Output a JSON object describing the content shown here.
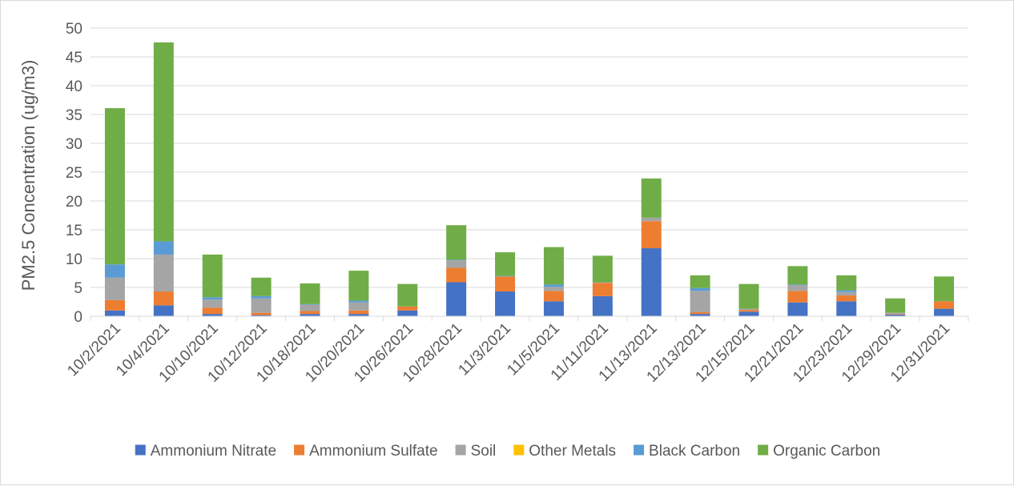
{
  "chart_data": {
    "type": "bar",
    "stacked": true,
    "title": "",
    "xlabel": "",
    "ylabel": "PM2.5 Concentration (ug/m3)",
    "ylim": [
      0,
      50
    ],
    "yticks": [
      "0",
      "5",
      "10",
      "15",
      "20",
      "25",
      "30",
      "35",
      "40",
      "45",
      "50"
    ],
    "grid": true,
    "legend_position": "bottom",
    "categories": [
      "10/2/2021",
      "10/4/2021",
      "10/10/2021",
      "10/12/2021",
      "10/18/2021",
      "10/20/2021",
      "10/26/2021",
      "10/28/2021",
      "11/3/2021",
      "11/5/2021",
      "11/11/2021",
      "11/13/2021",
      "12/13/2021",
      "12/15/2021",
      "12/21/2021",
      "12/23/2021",
      "12/29/2021",
      "12/31/2021"
    ],
    "series": [
      {
        "name": "Ammonium Nitrate",
        "color": "#4472C4",
        "values": [
          1.0,
          1.9,
          0.4,
          0.2,
          0.4,
          0.4,
          1.0,
          5.9,
          4.3,
          2.6,
          3.5,
          11.8,
          0.4,
          0.8,
          2.4,
          2.6,
          0.3,
          1.3
        ]
      },
      {
        "name": "Ammonium Sulfate",
        "color": "#ED7D31",
        "values": [
          1.8,
          2.4,
          1.1,
          0.4,
          0.5,
          0.6,
          0.7,
          2.5,
          2.6,
          1.8,
          2.3,
          4.7,
          0.3,
          0.3,
          2.0,
          1.0,
          0.1,
          1.3
        ]
      },
      {
        "name": "Soil",
        "color": "#A5A5A5",
        "values": [
          3.9,
          6.4,
          1.4,
          2.5,
          1.1,
          1.4,
          0.0,
          1.3,
          0.0,
          0.7,
          0.1,
          0.6,
          3.7,
          0.2,
          1.0,
          0.6,
          0.2,
          0.0
        ]
      },
      {
        "name": "Other Metals",
        "color": "#FFC000",
        "values": [
          0.0,
          0.0,
          0.0,
          0.0,
          0.0,
          0.0,
          0.0,
          0.0,
          0.0,
          0.0,
          0.0,
          0.0,
          0.0,
          0.0,
          0.0,
          0.0,
          0.0,
          0.0
        ]
      },
      {
        "name": "Black Carbon",
        "color": "#5B9BD5",
        "values": [
          2.3,
          2.3,
          0.4,
          0.4,
          0.1,
          0.3,
          0.0,
          0.1,
          0.1,
          0.4,
          0.0,
          0.0,
          0.5,
          0.0,
          0.1,
          0.3,
          0.0,
          0.0
        ]
      },
      {
        "name": "Organic Carbon",
        "color": "#70AD47",
        "values": [
          27.1,
          34.5,
          7.4,
          3.2,
          3.6,
          5.2,
          3.9,
          6.0,
          4.1,
          6.5,
          4.6,
          6.8,
          2.2,
          4.3,
          3.2,
          2.6,
          2.5,
          4.3
        ]
      }
    ]
  }
}
